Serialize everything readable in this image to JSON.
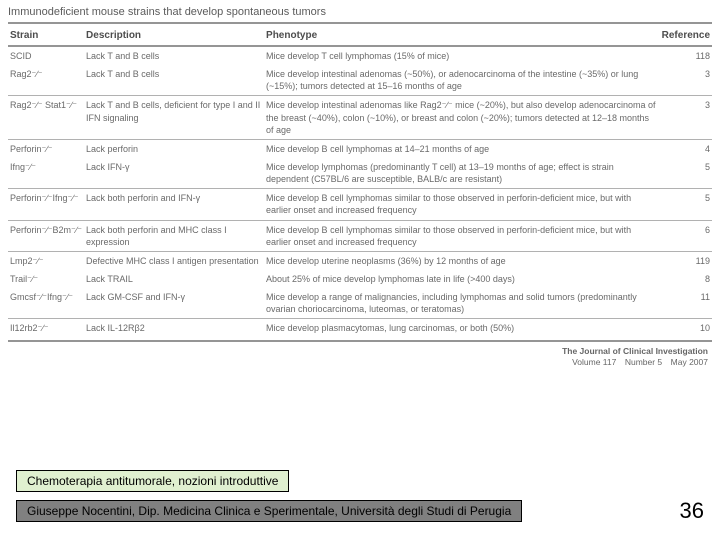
{
  "table": {
    "title": "Immunodeficient mouse strains that develop spontaneous tumors",
    "headers": [
      "Strain",
      "Description",
      "Phenotype",
      "Reference"
    ],
    "rows": [
      {
        "sep": false,
        "strain": "SCID",
        "desc": "Lack T and B cells",
        "pheno": "Mice develop T cell lymphomas (15% of mice)",
        "ref": "118"
      },
      {
        "sep": false,
        "strain": "Rag2⁻∕⁻",
        "desc": "Lack T and B cells",
        "pheno": "Mice develop intestinal adenomas (~50%), or adenocarcinoma of the intestine (~35%) or lung (~15%); tumors detected at 15–16 months of age",
        "ref": "3"
      },
      {
        "sep": true,
        "strain": "Rag2⁻∕⁻ Stat1⁻∕⁻",
        "desc": "Lack T and B cells, deficient for type I and II IFN signaling",
        "pheno": "Mice develop intestinal adenomas like Rag2⁻∕⁻ mice (~20%), but also develop adenocarcinoma of the breast (~40%), colon (~10%), or breast and colon (~20%); tumors detected at 12–18 months of age",
        "ref": "3"
      },
      {
        "sep": true,
        "strain": "Perforin⁻∕⁻",
        "desc": "Lack perforin",
        "pheno": "Mice develop B cell lymphomas at 14–21 months of age",
        "ref": "4"
      },
      {
        "sep": false,
        "strain": "Ifng⁻∕⁻",
        "desc": "Lack IFN-γ",
        "pheno": "Mice develop lymphomas (predominantly T cell) at 13–19 months of age; effect is strain dependent (C57BL/6 are susceptible, BALB/c are resistant)",
        "ref": "5"
      },
      {
        "sep": true,
        "strain": "Perforin⁻∕⁻Ifng⁻∕⁻",
        "desc": "Lack both perforin and IFN-γ",
        "pheno": "Mice develop B cell lymphomas similar to those observed in perforin-deficient mice, but with earlier onset and increased frequency",
        "ref": "5"
      },
      {
        "sep": true,
        "strain": "Perforin⁻∕⁻B2m⁻∕⁻",
        "desc": "Lack both perforin and MHC class I expression",
        "pheno": "Mice develop B cell lymphomas similar to those observed in perforin-deficient mice, but with earlier onset and increased frequency",
        "ref": "6"
      },
      {
        "sep": true,
        "strain": "Lmp2⁻∕⁻",
        "desc": "Defective MHC class I antigen presentation",
        "pheno": "Mice develop uterine neoplasms (36%) by 12 months of age",
        "ref": "119"
      },
      {
        "sep": false,
        "strain": "Trail⁻∕⁻",
        "desc": "Lack TRAIL",
        "pheno": "About 25% of mice develop lymphomas late in life (>400 days)",
        "ref": "8"
      },
      {
        "sep": false,
        "strain": "Gmcsf⁻∕⁻Ifng⁻∕⁻",
        "desc": "Lack GM-CSF and IFN-γ",
        "pheno": "Mice develop a range of malignancies, including lymphomas and solid tumors (predominantly ovarian choriocarcinoma, luteomas, or teratomas)",
        "ref": "11"
      },
      {
        "sep": true,
        "strain": "Il12rb2⁻∕⁻",
        "desc": "Lack IL-12Rβ2",
        "pheno": "Mice develop plasmacytomas, lung carcinomas, or both (50%)",
        "ref": "10"
      }
    ]
  },
  "journal": {
    "name": "The Journal of Clinical Investigation",
    "issue": "Volume 117 Number 5 May 2007"
  },
  "footer": {
    "lecture_title": "Chemoterapia antitumorale, nozioni introduttive",
    "author_line": "Giuseppe Nocentini, Dip. Medicina Clinica e Sperimentale, Università degli Studi di Perugia",
    "slide_number": "36"
  },
  "colors": {
    "title_box_bg": "#e0f0d0",
    "author_box_bg": "#808080",
    "border": "#000000",
    "rule": "#909090",
    "text_table": "#606060"
  }
}
